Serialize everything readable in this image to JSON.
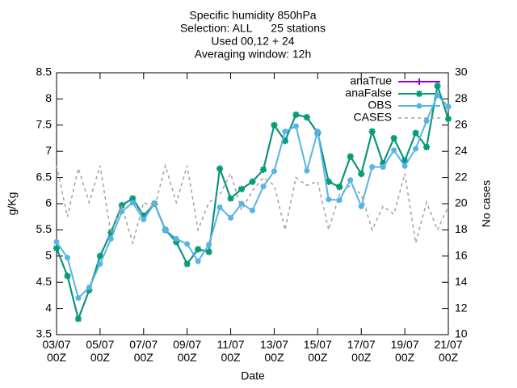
{
  "chart_data": {
    "type": "line",
    "title": [
      "Specific humidity 850hPa",
      "Selection: ALL      25 stations",
      "Used 00,12 + 24",
      "Averaging window: 12h"
    ],
    "xlabel": "Date",
    "ylabel": "g/Kg",
    "y2label": "No cases",
    "x": [
      "03/07 00Z",
      "03/07 12Z",
      "04/07 00Z",
      "04/07 12Z",
      "05/07 00Z",
      "05/07 12Z",
      "06/07 00Z",
      "06/07 12Z",
      "07/07 00Z",
      "07/07 12Z",
      "08/07 00Z",
      "08/07 12Z",
      "09/07 00Z",
      "09/07 12Z",
      "10/07 00Z",
      "10/07 12Z",
      "11/07 00Z",
      "11/07 12Z",
      "12/07 00Z",
      "12/07 12Z",
      "13/07 00Z",
      "13/07 12Z",
      "14/07 00Z",
      "14/07 12Z",
      "15/07 00Z",
      "15/07 12Z",
      "16/07 00Z",
      "16/07 12Z",
      "17/07 00Z",
      "17/07 12Z",
      "18/07 00Z",
      "18/07 12Z",
      "19/07 00Z",
      "19/07 12Z",
      "20/07 00Z",
      "20/07 12Z",
      "21/07 00Z"
    ],
    "xticks": [
      {
        "value": "03/07 00Z",
        "label": "03/07\n00Z"
      },
      {
        "value": "05/07 00Z",
        "label": "05/07\n00Z"
      },
      {
        "value": "07/07 00Z",
        "label": "07/07\n00Z"
      },
      {
        "value": "09/07 00Z",
        "label": "09/07\n00Z"
      },
      {
        "value": "11/07 00Z",
        "label": "11/07\n00Z"
      },
      {
        "value": "13/07 00Z",
        "label": "13/07\n00Z"
      },
      {
        "value": "15/07 00Z",
        "label": "15/07\n00Z"
      },
      {
        "value": "17/07 00Z",
        "label": "17/07\n00Z"
      },
      {
        "value": "19/07 00Z",
        "label": "19/07\n00Z"
      },
      {
        "value": "21/07 00Z",
        "label": "21/07\n00Z"
      }
    ],
    "ylim": [
      3.5,
      8.5
    ],
    "yticks": [
      3.5,
      4,
      4.5,
      5,
      5.5,
      6,
      6.5,
      7,
      7.5,
      8,
      8.5
    ],
    "y2lim": [
      10,
      30
    ],
    "y2ticks": [
      10,
      12,
      14,
      16,
      18,
      20,
      22,
      24,
      26,
      28,
      30
    ],
    "legend": "top-right",
    "series": [
      {
        "name": "anaTrue",
        "color": "#9400d3",
        "marker": "plus",
        "values": [
          5.15,
          4.62,
          3.8,
          4.35,
          5.0,
          5.45,
          5.97,
          6.1,
          5.77,
          6.0,
          5.5,
          5.27,
          4.85,
          5.13,
          5.08,
          6.67,
          6.1,
          6.28,
          6.42,
          6.65,
          7.5,
          7.2,
          7.7,
          7.65,
          7.35,
          6.42,
          6.32,
          6.9,
          6.57,
          7.38,
          6.77,
          7.25,
          6.82,
          7.35,
          7.08,
          8.25,
          7.62
        ]
      },
      {
        "name": "anaFalse",
        "color": "#009e73",
        "marker": "star",
        "values": [
          5.15,
          4.62,
          3.8,
          4.35,
          5.0,
          5.45,
          5.97,
          6.1,
          5.77,
          6.0,
          5.5,
          5.27,
          4.85,
          5.13,
          5.08,
          6.67,
          6.1,
          6.28,
          6.42,
          6.65,
          7.5,
          7.2,
          7.7,
          7.65,
          7.35,
          6.42,
          6.32,
          6.9,
          6.57,
          7.38,
          6.77,
          7.25,
          6.82,
          7.35,
          7.08,
          8.25,
          7.62
        ]
      },
      {
        "name": "OBS",
        "color": "#56b4e9",
        "marker": "circle",
        "values": [
          5.27,
          4.97,
          4.2,
          4.4,
          4.85,
          5.33,
          5.85,
          6.02,
          5.7,
          6.0,
          5.5,
          5.33,
          5.23,
          4.9,
          5.22,
          5.93,
          5.73,
          6.0,
          5.87,
          6.33,
          6.62,
          7.38,
          7.48,
          6.63,
          7.38,
          6.08,
          6.07,
          6.45,
          5.95,
          6.7,
          6.7,
          7.02,
          6.72,
          7.05,
          7.58,
          8.07,
          7.85
        ]
      },
      {
        "name": "CASES",
        "color": "#a0a0a0",
        "dashed": true,
        "axis": "y2",
        "values": [
          22.9,
          19,
          22.7,
          20.1,
          22.9,
          17.7,
          19.8,
          17,
          20.1,
          19.7,
          22.9,
          20.1,
          22.9,
          18,
          20.1,
          20.7,
          22.3,
          19.5,
          21,
          22,
          21.4,
          18,
          22,
          21.4,
          21.7,
          18,
          20.7,
          21.4,
          20.7,
          18,
          19.8,
          19.2,
          22.3,
          17,
          20.1,
          18,
          19.8
        ]
      }
    ]
  }
}
